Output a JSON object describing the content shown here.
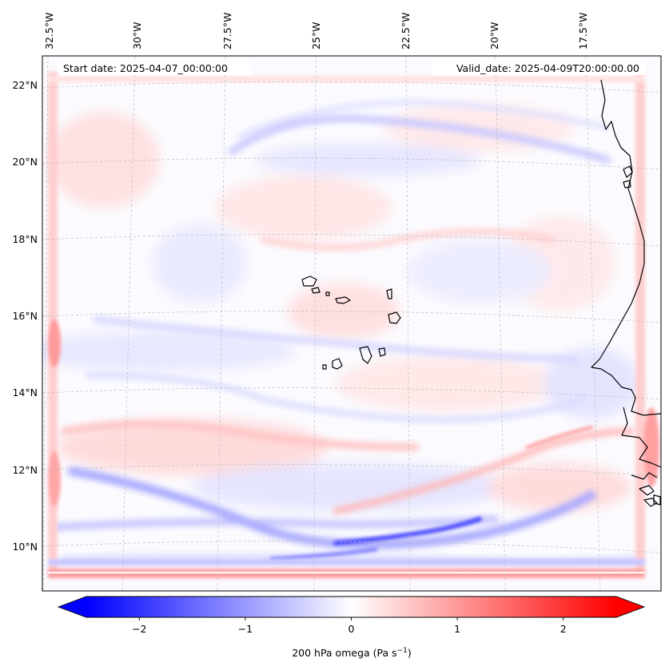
{
  "map": {
    "start_label": "Start date: 2025-04-07_00:00:00",
    "valid_label": "Valid_date: 2025-04-09T20:00:00.00",
    "lon_labels": [
      "32.5°W",
      "30°W",
      "27.5°W",
      "25°W",
      "22.5°W",
      "20°W",
      "17.5°W"
    ],
    "lat_labels": [
      "22°N",
      "20°N",
      "18°N",
      "16°N",
      "14°N",
      "12°N",
      "10°N"
    ],
    "coastline_color": "#000000",
    "gridline_color": "#bbbbbb"
  },
  "colorbar": {
    "label_main": "200 hPa omega (Pa s",
    "label_exp": "−1",
    "label_close": ")",
    "ticks": [
      "−2",
      "−1",
      "0",
      "1",
      "2"
    ],
    "tick_values": [
      -2,
      -1,
      0,
      1,
      2
    ],
    "range": [
      -2.75,
      2.75
    ],
    "cmap": "bwr",
    "low_color": "#0000ff",
    "mid_color": "#ffffff",
    "high_color": "#ff0000",
    "extend": "both"
  }
}
